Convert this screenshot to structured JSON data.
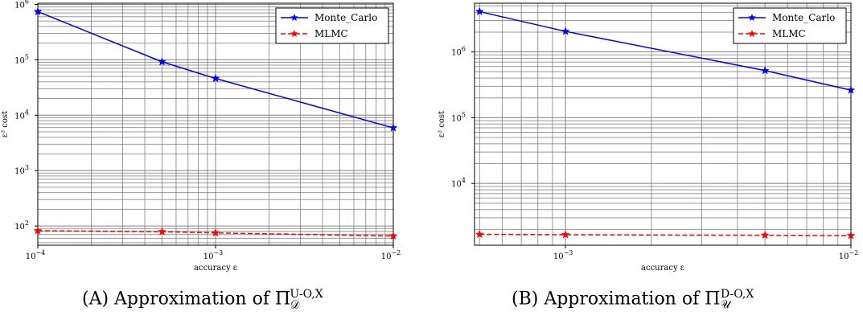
{
  "chart_data": [
    {
      "type": "line",
      "panel": "A",
      "x_scale": "log",
      "y_scale": "log",
      "xlim": [
        0.0001,
        0.01
      ],
      "ylim": [
        45,
        1050000
      ],
      "xlabel": "accuracy ε",
      "ylabel": "ε² cost",
      "x_major_ticks": [
        {
          "value": 0.0001,
          "base": "10",
          "exp": "−4"
        },
        {
          "value": 0.001,
          "base": "10",
          "exp": "−3"
        },
        {
          "value": 0.01,
          "base": "10",
          "exp": "−2"
        }
      ],
      "y_major_ticks": [
        {
          "value": 100,
          "base": "10",
          "exp": "2"
        },
        {
          "value": 1000,
          "base": "10",
          "exp": "3"
        },
        {
          "value": 10000,
          "base": "10",
          "exp": "4"
        },
        {
          "value": 100000,
          "base": "10",
          "exp": "5"
        },
        {
          "value": 1000000,
          "base": "10",
          "exp": "6"
        }
      ],
      "grid": true,
      "legend_position": "top-right",
      "series": [
        {
          "name": "Monte_Carlo",
          "color": "#0000ff",
          "style": "solid",
          "marker": "star",
          "x": [
            0.0001,
            0.0005,
            0.001,
            0.01
          ],
          "y": [
            740000,
            92000,
            46000,
            5900
          ]
        },
        {
          "name": "MLMC",
          "color": "#ff0000",
          "style": "dashed",
          "marker": "star",
          "x": [
            0.0001,
            0.0005,
            0.001,
            0.01
          ],
          "y": [
            82,
            79,
            75,
            66
          ]
        }
      ],
      "caption": {
        "prefix": "(A) Approximation of Π",
        "sup": "U-O,X",
        "sub": "𝒟"
      }
    },
    {
      "type": "line",
      "panel": "B",
      "x_scale": "log",
      "y_scale": "log",
      "xlim": [
        0.00048,
        0.01
      ],
      "ylim": [
        1150,
        5500000
      ],
      "xlabel": "accuracy ε",
      "ylabel": "ε² cost",
      "x_major_ticks": [
        {
          "value": 0.001,
          "base": "10",
          "exp": "−3"
        },
        {
          "value": 0.01,
          "base": "10",
          "exp": "−2"
        }
      ],
      "y_major_ticks": [
        {
          "value": 10000,
          "base": "10",
          "exp": "4"
        },
        {
          "value": 100000,
          "base": "10",
          "exp": "5"
        },
        {
          "value": 1000000,
          "base": "10",
          "exp": "6"
        }
      ],
      "grid": true,
      "legend_position": "top-right",
      "series": [
        {
          "name": "Monte_Carlo",
          "color": "#0000ff",
          "style": "solid",
          "marker": "star",
          "x": [
            0.0005,
            0.001,
            0.005,
            0.01
          ],
          "y": [
            4100000,
            2050000,
            520000,
            262000
          ]
        },
        {
          "name": "MLMC",
          "color": "#ff0000",
          "style": "dashed",
          "marker": "star",
          "x": [
            0.0005,
            0.001,
            0.005,
            0.01
          ],
          "y": [
            1680,
            1660,
            1630,
            1610
          ]
        }
      ],
      "caption": {
        "prefix": "(B) Approximation of Π",
        "sup": "D-O,X",
        "sub": "𝒰"
      }
    }
  ]
}
